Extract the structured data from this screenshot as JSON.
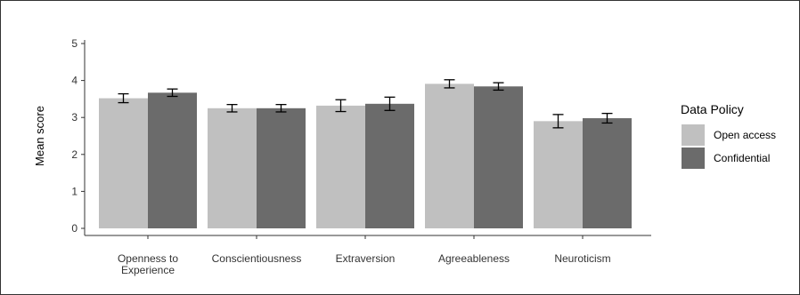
{
  "chart_data": {
    "type": "bar",
    "title": "",
    "xlabel": "",
    "ylabel": "Mean score",
    "ylim": [
      0,
      5
    ],
    "yticks": [
      0,
      1,
      2,
      3,
      4,
      5
    ],
    "grid": false,
    "legend_position": "right",
    "legend_title": "Data Policy",
    "categories": [
      [
        "Openness to",
        "Experience"
      ],
      [
        "Conscientiousness"
      ],
      [
        "Extraversion"
      ],
      [
        "Agreeableness"
      ],
      [
        "Neuroticism"
      ]
    ],
    "series": [
      {
        "name": "Open access",
        "color": "#c0c0c0",
        "values": [
          3.52,
          3.25,
          3.32,
          3.91,
          2.9
        ],
        "error": [
          0.12,
          0.1,
          0.16,
          0.11,
          0.18
        ]
      },
      {
        "name": "Confidential",
        "color": "#6b6b6b",
        "values": [
          3.67,
          3.25,
          3.37,
          3.84,
          2.98
        ],
        "error": [
          0.1,
          0.1,
          0.18,
          0.1,
          0.13
        ]
      }
    ]
  }
}
